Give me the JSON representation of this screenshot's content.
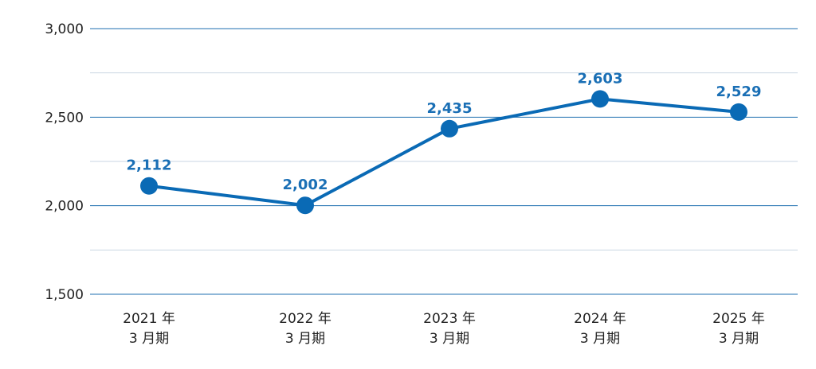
{
  "chart_data": {
    "type": "line",
    "categories": [
      [
        "2021 年",
        "3 月期"
      ],
      [
        "2022 年",
        "3 月期"
      ],
      [
        "2023 年",
        "3 月期"
      ],
      [
        "2024 年",
        "3 月期"
      ],
      [
        "2025 年",
        "3 月期"
      ]
    ],
    "series": [
      {
        "values": [
          2112,
          2002,
          2435,
          2603,
          2529
        ],
        "value_labels": [
          "2,112",
          "2,002",
          "2,435",
          "2,603",
          "2,529"
        ],
        "color": "#0a6ab5"
      }
    ],
    "ylim": [
      1500,
      3000
    ],
    "yticks": [
      1500,
      2000,
      2500,
      3000
    ],
    "ytick_labels": [
      "1,500",
      "2,000",
      "2,500",
      "3,000"
    ],
    "minor_grid": [
      1750,
      2250,
      2750
    ],
    "grid": true,
    "colors": {
      "major_grid": "#1f6fb0",
      "minor_grid": "#c9d6e3",
      "line": "#0a6ab5",
      "label": "#1a6fb5"
    }
  }
}
